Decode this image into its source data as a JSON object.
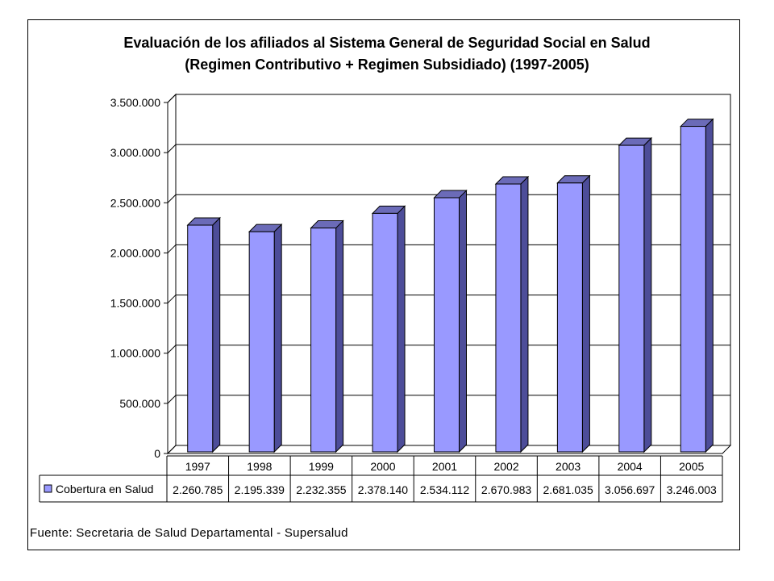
{
  "chart_data": {
    "type": "bar",
    "title": "Evaluación de los afiliados al Sistema General de Seguridad Social en Salud",
    "subtitle": "(Regimen Contributivo + Regimen Subsidiado) (1997-2005)",
    "categories": [
      "1997",
      "1998",
      "1999",
      "2000",
      "2001",
      "2002",
      "2003",
      "2004",
      "2005"
    ],
    "series": [
      {
        "name": "Cobertura en Salud",
        "values": [
          2260785,
          2195339,
          2232355,
          2378140,
          2534112,
          2670983,
          2681035,
          3056697,
          3246003
        ],
        "value_labels": [
          "2.260.785",
          "2.195.339",
          "2.232.355",
          "2.378.140",
          "2.534.112",
          "2.670.983",
          "2.681.035",
          "3.056.697",
          "3.246.003"
        ]
      }
    ],
    "ylim": [
      0,
      3500000
    ],
    "yticks": [
      0,
      500000,
      1000000,
      1500000,
      2000000,
      2500000,
      3000000,
      3500000
    ],
    "ytick_labels": [
      "0",
      "500.000",
      "1.000.000",
      "1.500.000",
      "2.000.000",
      "2.500.000",
      "3.000.000",
      "3.500.000"
    ],
    "grid": true,
    "legend": "data table below chart",
    "style": "3d-columns",
    "colors": {
      "bar_front": "#9999ff",
      "bar_side": "#4d4d99",
      "bar_top": "#6b6bb8",
      "grid": "#000000"
    },
    "source": "Fuente:  Secretaria de Salud Departamental - Supersalud"
  }
}
